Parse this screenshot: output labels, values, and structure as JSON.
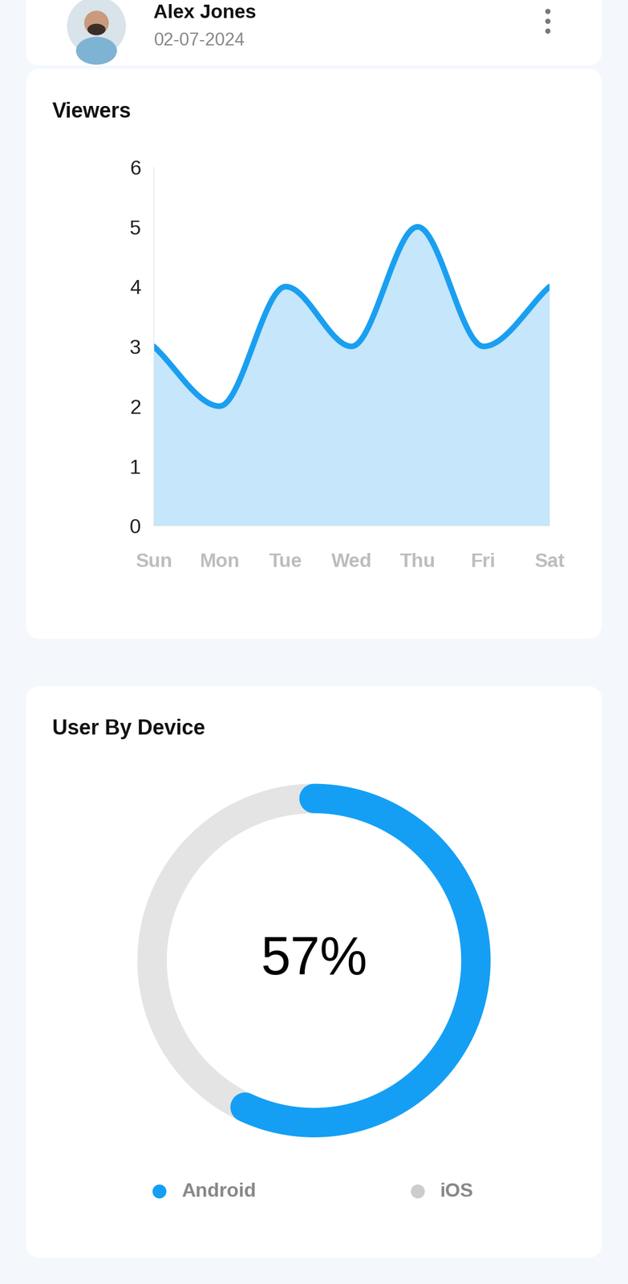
{
  "header": {
    "name": "Alex Jones",
    "date": "02-07-2024"
  },
  "chart_data": [
    {
      "type": "area",
      "title": "Viewers",
      "categories": [
        "Sun",
        "Mon",
        "Tue",
        "Wed",
        "Thu",
        "Fri",
        "Sat"
      ],
      "values": [
        3,
        2,
        4,
        3,
        5,
        3,
        4
      ],
      "color": "#1a9ff0",
      "ylim": [
        0,
        6
      ],
      "yticks": [
        0,
        1,
        2,
        3,
        4,
        5,
        6
      ],
      "grid": false
    },
    {
      "type": "donut",
      "title": "User By Device",
      "categories": [
        "Android",
        "iOS"
      ],
      "values": [
        57,
        43
      ],
      "value_labels": [
        "57%",
        null
      ],
      "colors": [
        "#149ff5",
        "#e4e4e4"
      ]
    }
  ]
}
